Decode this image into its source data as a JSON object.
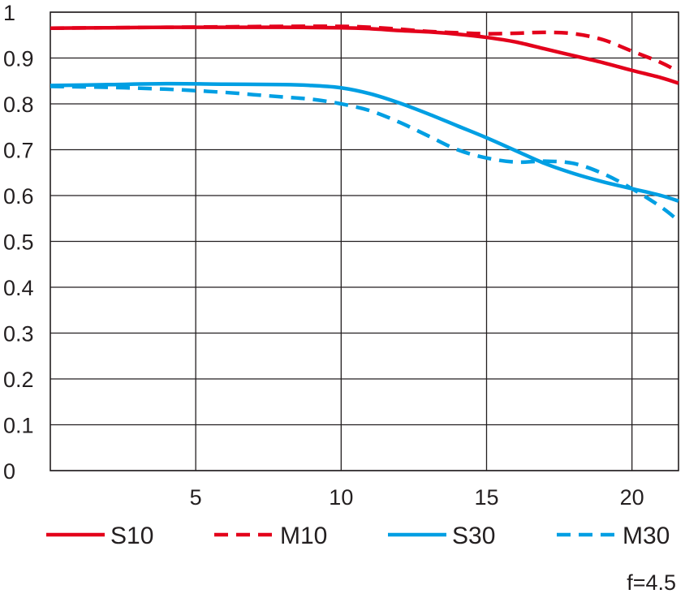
{
  "chart_data": {
    "type": "line",
    "title": "",
    "xlabel": "",
    "ylabel": "",
    "xlim": [
      0,
      21.6
    ],
    "ylim": [
      0,
      1
    ],
    "x_ticks": [
      5,
      10,
      15,
      20
    ],
    "y_ticks": [
      0,
      0.1,
      0.2,
      0.3,
      0.4,
      0.5,
      0.6,
      0.7,
      0.8,
      0.9,
      1
    ],
    "x_tick_labels": [
      "5",
      "10",
      "15",
      "20"
    ],
    "y_tick_labels": [
      "0",
      "0.1",
      "0.2",
      "0.3",
      "0.4",
      "0.5",
      "0.6",
      "0.7",
      "0.8",
      "0.9",
      "1"
    ],
    "grid": true,
    "legend_position": "bottom",
    "annotation": "f=4.5",
    "series": [
      {
        "name": "S10",
        "color": "#e3001b",
        "style": "solid",
        "x": [
          0,
          2,
          4,
          6,
          8,
          10,
          11,
          12,
          13,
          14,
          15,
          16,
          17,
          18,
          19,
          20,
          21,
          21.6
        ],
        "y": [
          0.965,
          0.966,
          0.967,
          0.967,
          0.967,
          0.966,
          0.964,
          0.96,
          0.957,
          0.952,
          0.945,
          0.935,
          0.92,
          0.905,
          0.89,
          0.873,
          0.857,
          0.845
        ]
      },
      {
        "name": "M10",
        "color": "#e3001b",
        "style": "dashed",
        "x": [
          0,
          2,
          4,
          6,
          8,
          10,
          11,
          12,
          13,
          14,
          15,
          16,
          17,
          18,
          19,
          20,
          21,
          21.6
        ],
        "y": [
          0.965,
          0.966,
          0.967,
          0.968,
          0.969,
          0.969,
          0.967,
          0.963,
          0.958,
          0.955,
          0.953,
          0.954,
          0.956,
          0.953,
          0.94,
          0.915,
          0.89,
          0.87
        ]
      },
      {
        "name": "S30",
        "color": "#009fe3",
        "style": "solid",
        "x": [
          0,
          2,
          4,
          6,
          8,
          9,
          10,
          11,
          12,
          13,
          14,
          15,
          16,
          17,
          18,
          19,
          20,
          21,
          21.6
        ],
        "y": [
          0.84,
          0.842,
          0.844,
          0.843,
          0.842,
          0.84,
          0.835,
          0.822,
          0.802,
          0.778,
          0.752,
          0.726,
          0.698,
          0.67,
          0.648,
          0.63,
          0.615,
          0.6,
          0.588
        ]
      },
      {
        "name": "M30",
        "color": "#009fe3",
        "style": "dashed",
        "x": [
          0,
          2,
          4,
          6,
          7,
          8,
          9,
          10,
          11,
          12,
          13,
          14,
          15,
          16,
          17,
          18,
          19,
          20,
          21,
          21.6
        ],
        "y": [
          0.838,
          0.836,
          0.832,
          0.825,
          0.82,
          0.815,
          0.81,
          0.8,
          0.785,
          0.76,
          0.73,
          0.7,
          0.682,
          0.673,
          0.675,
          0.67,
          0.648,
          0.615,
          0.575,
          0.545
        ]
      }
    ]
  }
}
